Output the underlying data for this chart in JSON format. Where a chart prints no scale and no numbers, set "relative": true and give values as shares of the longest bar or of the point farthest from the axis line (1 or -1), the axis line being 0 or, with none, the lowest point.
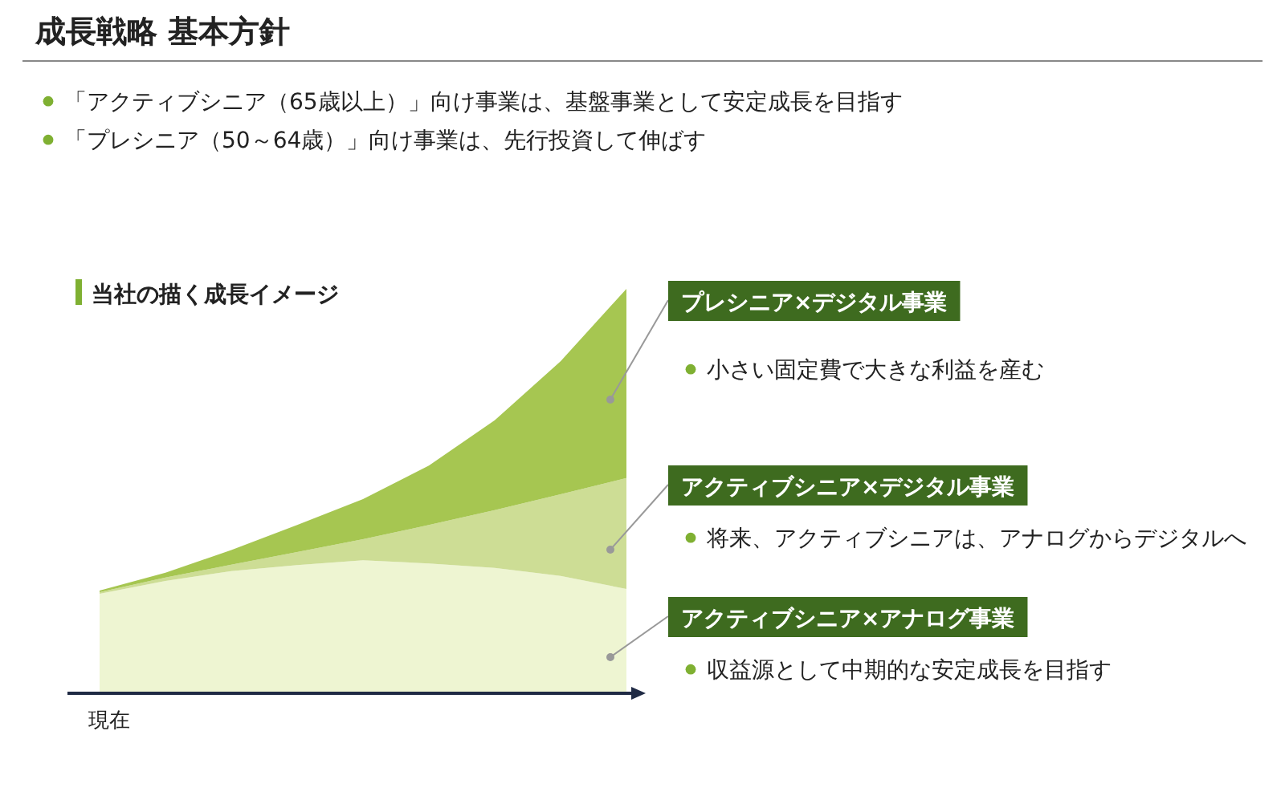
{
  "chart_data": {
    "type": "area",
    "stacked": true,
    "relative": true,
    "legend": false,
    "title": "成長戦略 基本方針",
    "subtitle": "「アクティブシニア（65歳以上）」向け事業は、基盤事業として安定成長を目指す",
    "xlabel": "現在",
    "categories": [
      null,
      null,
      null,
      null,
      null,
      null,
      null,
      null,
      null
    ],
    "series": [
      {
        "name": "アクティブシニア×アナログ事業",
        "color": "#eef5d2",
        "values": [
          0.246,
          0.278,
          0.302,
          0.317,
          0.329,
          0.321,
          0.31,
          0.29,
          0.258
        ]
      },
      {
        "name": "アクティブシニア×デジタル事業",
        "color": "#cddd95",
        "values": [
          0.004,
          0.008,
          0.016,
          0.032,
          0.052,
          0.095,
          0.143,
          0.202,
          0.274
        ]
      },
      {
        "name": "プレシニア×デジタル事業",
        "color": "#a6c651",
        "values": [
          0.004,
          0.012,
          0.036,
          0.067,
          0.099,
          0.147,
          0.222,
          0.329,
          0.468
        ]
      }
    ],
    "annotations": [
      "「プレシニア（50～64歳）」向け事業は、先行投資して伸ばす",
      "当社の描く成長イメージ",
      "小さい固定費で大きな利益を産む",
      "将来、アクティブシニアは、アナログからデジタルへ",
      "収益源として中期的な安定成長を目指す"
    ]
  }
}
